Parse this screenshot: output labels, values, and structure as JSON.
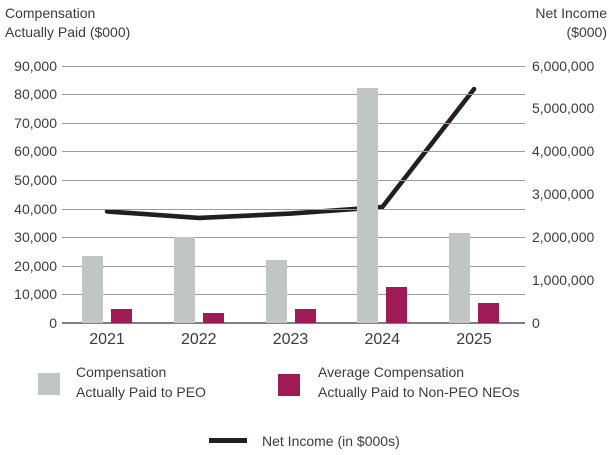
{
  "header": {
    "left_title_line1": "Compensation",
    "left_title_line2": "Actually Paid ($000)",
    "right_title_line1": "Net Income",
    "right_title_line2": "($000)"
  },
  "legend": {
    "peo": {
      "label_line1": "Compensation",
      "label_line2": "Actually Paid to PEO",
      "color": "#c3c4c4"
    },
    "non_peo": {
      "label_line1": "Average Compensation",
      "label_line2": "Actually Paid to Non-PEO NEOs",
      "color": "#9e1b55"
    },
    "net_income": {
      "label": "Net Income (in $000s)",
      "color": "#231f20"
    }
  },
  "chart_data": {
    "type": "bar+line combo",
    "categories": [
      "2021",
      "2022",
      "2023",
      "2024",
      "2025"
    ],
    "series": [
      {
        "name": "Compensation Actually Paid to PEO",
        "type": "bar",
        "axis": "left",
        "color": "#c3c4c4",
        "values": [
          23500,
          30000,
          22000,
          82000,
          31500
        ]
      },
      {
        "name": "Average Compensation Actually Paid to Non-PEO NEOs",
        "type": "bar",
        "axis": "left",
        "color": "#9e1b55",
        "values": [
          5000,
          3500,
          5000,
          12500,
          7000
        ]
      },
      {
        "name": "Net Income (in $000s)",
        "type": "line",
        "axis": "right",
        "color": "#231f20",
        "values": [
          2600000,
          2450000,
          2550000,
          2700000,
          5450000
        ]
      }
    ],
    "left_axis": {
      "title": "Compensation Actually Paid ($000)",
      "min": 0,
      "max": 90000,
      "step": 10000,
      "ticks": [
        "0",
        "10,000",
        "20,000",
        "30,000",
        "40,000",
        "50,000",
        "60,000",
        "70,000",
        "80,000",
        "90,000"
      ]
    },
    "right_axis": {
      "title": "Net Income ($000)",
      "min": 0,
      "max": 6000000,
      "step": 1000000,
      "ticks": [
        "0",
        "1,000,000",
        "2,000,000",
        "3,000,000",
        "4,000,000",
        "5,000,000",
        "6,000,000"
      ]
    },
    "grid": true,
    "legend_position": "bottom"
  }
}
